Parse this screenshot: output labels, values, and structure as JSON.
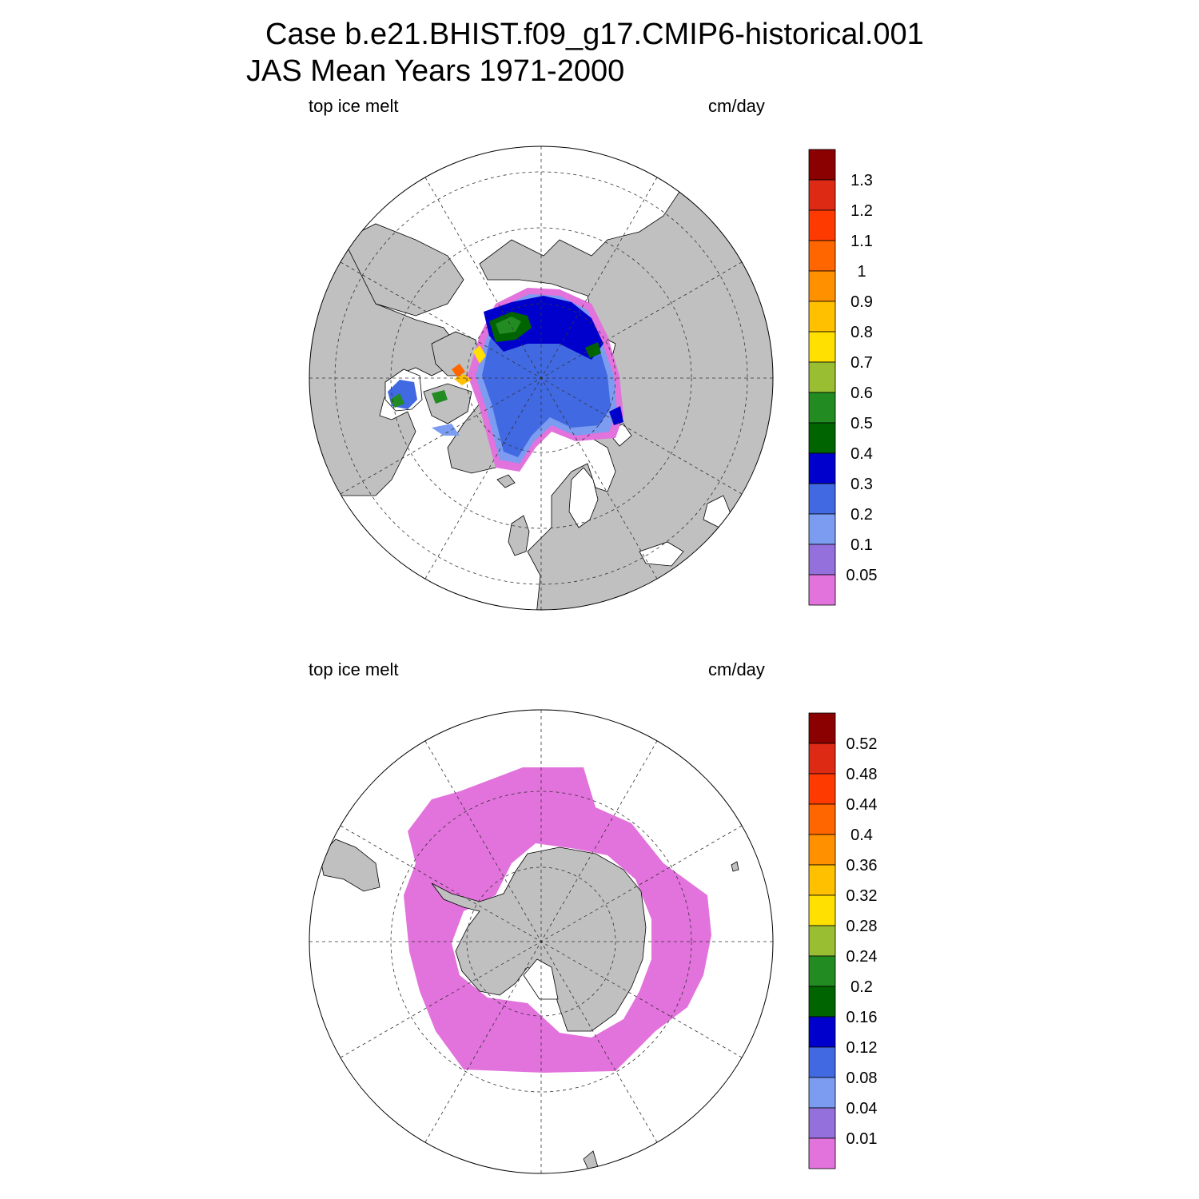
{
  "title": {
    "line1": "Case b.e21.BHIST.f09_g17.CMIP6-historical.001",
    "line2": "JAS Mean   Years 1971-2000"
  },
  "panels": [
    {
      "hemisphere": "north",
      "left_label": "top ice melt",
      "right_label": "cm/day",
      "colorbar_labels": [
        "1.3",
        "1.2",
        "1.1",
        "1",
        "0.9",
        "0.8",
        "0.7",
        "0.6",
        "0.5",
        "0.4",
        "0.3",
        "0.2",
        "0.1",
        "0.05"
      ]
    },
    {
      "hemisphere": "south",
      "left_label": "top ice melt",
      "right_label": "cm/day",
      "colorbar_labels": [
        "0.52",
        "0.48",
        "0.44",
        "0.4",
        "0.36",
        "0.32",
        "0.28",
        "0.24",
        "0.2",
        "0.16",
        "0.12",
        "0.08",
        "0.04",
        "0.01"
      ]
    }
  ],
  "colorbar_colors": [
    "#8b0000",
    "#dd2a15",
    "#ff3a00",
    "#ff6600",
    "#ff9000",
    "#ffc000",
    "#ffe000",
    "#9abe32",
    "#228b22",
    "#006400",
    "#0000cd",
    "#4169e1",
    "#7b9cf1",
    "#9370db",
    "#e272dc"
  ],
  "land_color": "#c0c0c0",
  "ocean_color": "#ffffff",
  "chart_data": [
    {
      "type": "heatmap",
      "title": "top ice melt",
      "units": "cm/day",
      "region": "Arctic (north polar stereographic)",
      "contour_levels": [
        0.05,
        0.1,
        0.2,
        0.3,
        0.4,
        0.5,
        0.6,
        0.7,
        0.8,
        0.9,
        1,
        1.1,
        1.2,
        1.3
      ]
    },
    {
      "type": "heatmap",
      "title": "top ice melt",
      "units": "cm/day",
      "region": "Antarctic (south polar stereographic)",
      "contour_levels": [
        0.01,
        0.04,
        0.08,
        0.12,
        0.16,
        0.2,
        0.24,
        0.28,
        0.32,
        0.36,
        0.4,
        0.44,
        0.48,
        0.52
      ]
    }
  ]
}
